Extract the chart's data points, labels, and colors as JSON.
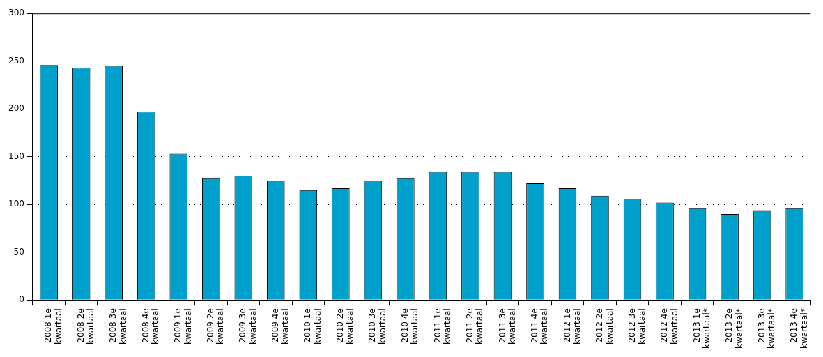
{
  "chart_data": {
    "type": "bar",
    "categories": [
      "2008 1e kwartaal",
      "2008 2e kwartaal",
      "2008 3e kwartaal",
      "2008 4e kwartaal",
      "2009 1e kwartaal",
      "2009 2e kwartaal",
      "2009 3e kwartaal",
      "2009 4e kwartaal",
      "2010 1e kwartaal",
      "2010 2e kwartaal",
      "2010 3e kwartaal",
      "2010 4e kwartaal",
      "2011 1e kwartaal",
      "2011 2e kwartaal",
      "2011 3e kwartaal",
      "2011 4e kwartaal",
      "2012 1e kwartaal",
      "2012 2e kwartaal",
      "2012 3e kwartaal",
      "2012 4e kwartaal",
      "2013 1e kwartaal*",
      "2013 2e kwartaal*",
      "2013 3e kwartaal*",
      "2013 4e kwartaal*"
    ],
    "values": [
      246,
      243,
      245,
      197,
      153,
      128,
      130,
      125,
      115,
      117,
      125,
      128,
      134,
      134,
      134,
      122,
      117,
      109,
      106,
      102,
      96,
      90,
      94,
      96
    ],
    "color": "#00a0cc",
    "ylim": [
      0,
      300
    ],
    "yticks": [
      0,
      50,
      100,
      150,
      200,
      250,
      300
    ],
    "grid": "y",
    "legend": false
  }
}
